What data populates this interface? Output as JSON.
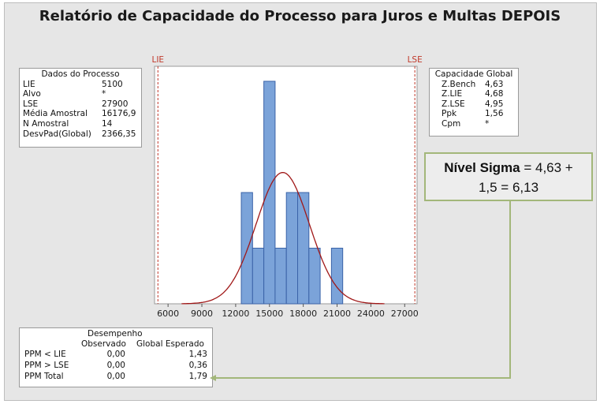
{
  "title": "Relatório de Capacidade do Processo para Juros e Multas DEPOIS",
  "process_data": {
    "heading": "Dados do Processo",
    "rows": [
      {
        "label": "LIE",
        "value": "5100"
      },
      {
        "label": "Alvo",
        "value": "*"
      },
      {
        "label": "LSE",
        "value": "27900"
      },
      {
        "label": "Média Amostral",
        "value": "16176,9"
      },
      {
        "label": "N Amostral",
        "value": "14"
      },
      {
        "label": "DesvPad(Global)",
        "value": "2366,35"
      }
    ]
  },
  "capability": {
    "heading": "Capacidade Global",
    "rows": [
      {
        "label": "Z.Bench",
        "value": "4,63"
      },
      {
        "label": "Z.LIE",
        "value": "4,68"
      },
      {
        "label": "Z.LSE",
        "value": "4,95"
      },
      {
        "label": "Ppk",
        "value": "1,56"
      },
      {
        "label": "Cpm",
        "value": "*"
      }
    ]
  },
  "performance": {
    "heading": "Desempenho",
    "col_observed": "Observado",
    "col_expected": "Global Esperado",
    "rows": [
      {
        "label": "PPM < LIE",
        "observed": "0,00",
        "expected": "1,43"
      },
      {
        "label": "PPM > LSE",
        "observed": "0,00",
        "expected": "0,36"
      },
      {
        "label": "PPM Total",
        "observed": "0,00",
        "expected": "1,79"
      }
    ]
  },
  "callout": {
    "bold": "Nível Sigma",
    "line1_rest": " = 4,63 +",
    "line2": "1,5 = 6,13"
  },
  "colors": {
    "bar_fill": "#7ba3d9",
    "bar_stroke": "#3b63a8",
    "curve": "#a01818",
    "spec_line": "#c0392b",
    "callout_border": "#a3b77a"
  },
  "chart_data": {
    "type": "bar",
    "title": "",
    "xlabel": "",
    "ylabel": "",
    "xlim": [
      5100,
      27900
    ],
    "x_ticks": [
      6000,
      9000,
      12000,
      15000,
      18000,
      21000,
      24000,
      27000
    ],
    "x_tick_labels": [
      "6000",
      "9000",
      "12000",
      "15000",
      "18000",
      "21000",
      "24000",
      "27000"
    ],
    "bins": [
      {
        "start": 12500,
        "end": 13500,
        "count": 2
      },
      {
        "start": 13500,
        "end": 14500,
        "count": 1
      },
      {
        "start": 14500,
        "end": 15500,
        "count": 4
      },
      {
        "start": 15500,
        "end": 16500,
        "count": 1
      },
      {
        "start": 16500,
        "end": 17500,
        "count": 2
      },
      {
        "start": 17500,
        "end": 18500,
        "count": 2
      },
      {
        "start": 18500,
        "end": 19500,
        "count": 1
      },
      {
        "start": 20500,
        "end": 21500,
        "count": 1
      }
    ],
    "ylim": [
      0,
      4
    ],
    "spec_limits": [
      {
        "name": "LIE",
        "value": 5100
      },
      {
        "name": "LSE",
        "value": 27900
      }
    ],
    "normal_curve": {
      "mean": 16176.9,
      "stdev": 2366.35
    }
  }
}
